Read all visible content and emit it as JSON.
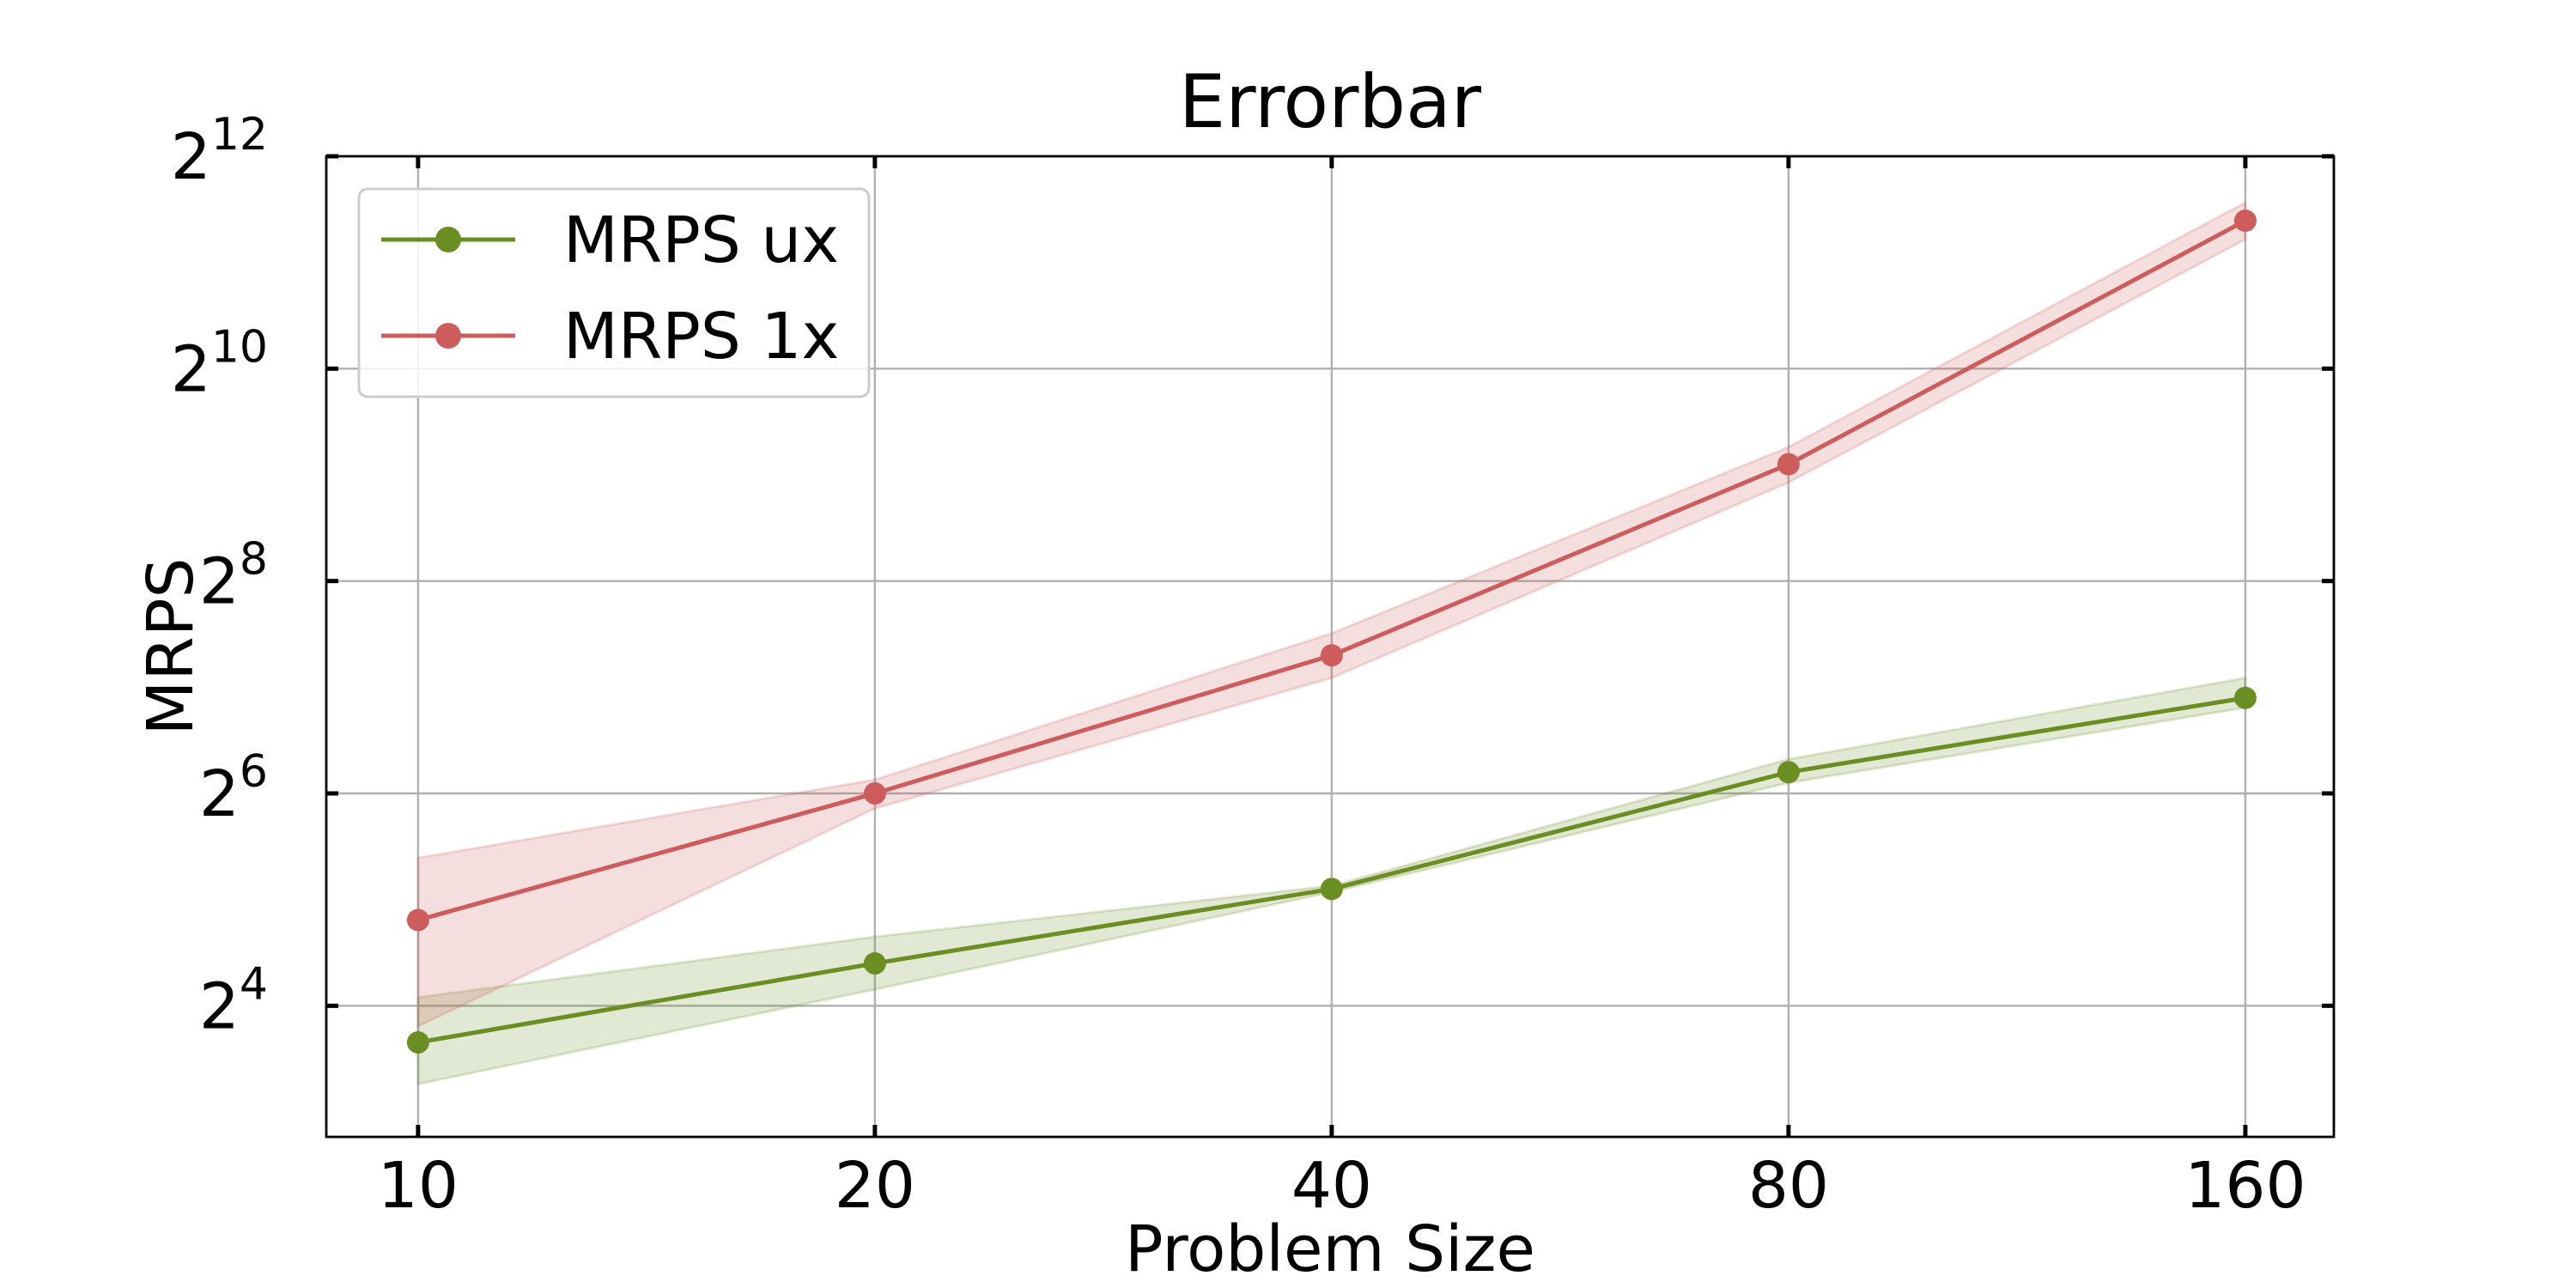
{
  "chart_data": {
    "type": "line",
    "title": "Errorbar",
    "xlabel": "Problem Size",
    "ylabel": "MRPS",
    "x_scale": "log2",
    "y_scale": "log2",
    "x": [
      10,
      20,
      40,
      80,
      160
    ],
    "x_tick_labels": [
      "10",
      "20",
      "40",
      "80",
      "160"
    ],
    "xlim": [
      8.7,
      183
    ],
    "y_ticks": [
      {
        "base": "2",
        "exp": "4",
        "value": 16
      },
      {
        "base": "2",
        "exp": "6",
        "value": 64
      },
      {
        "base": "2",
        "exp": "8",
        "value": 256
      },
      {
        "base": "2",
        "exp": "10",
        "value": 1024
      },
      {
        "base": "2",
        "exp": "12",
        "value": 4096
      }
    ],
    "ylim": [
      6.8,
      4096
    ],
    "grid": true,
    "legend_position": "top-left",
    "series": [
      {
        "name": "MRPS ux",
        "color": "#6b8e23",
        "values": [
          12.6,
          21.1,
          34.3,
          73.5,
          119.4
        ],
        "lower": [
          9.6,
          17.8,
          33.6,
          68.6,
          112.0
        ],
        "upper": [
          16.9,
          25.1,
          35.0,
          80.0,
          136.0
        ]
      },
      {
        "name": "MRPS 1x",
        "color": "#cd5c5c",
        "values": [
          28.0,
          64.0,
          157.6,
          548.7,
          2690.0
        ],
        "lower": [
          14.0,
          58.0,
          136.0,
          487.0,
          2380.0
        ],
        "upper": [
          42.0,
          70.0,
          182.0,
          614.0,
          3030.0
        ]
      }
    ]
  }
}
